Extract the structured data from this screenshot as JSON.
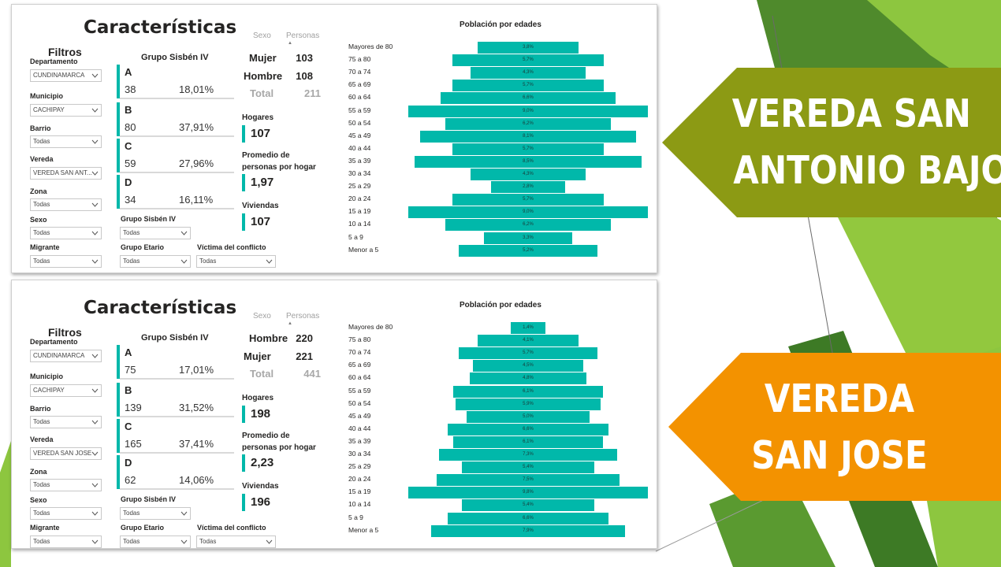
{
  "decor": {
    "arrow1_color": "#8c9a14",
    "arrow2_color": "#f39200",
    "accent": "#01b8aa"
  },
  "callouts": [
    {
      "lines": [
        "VEREDA SAN",
        "ANTONIO BAJO"
      ]
    },
    {
      "lines": [
        "VEREDA",
        "SAN JOSE"
      ]
    }
  ],
  "dashboards": [
    {
      "title": "Características",
      "filters": {
        "heading": "Filtros",
        "departamento": {
          "label": "Departamento",
          "value": "CUNDINAMARCA"
        },
        "municipio": {
          "label": "Municipio",
          "value": "CACHIPAY"
        },
        "barrio": {
          "label": "Barrio",
          "value": "Todas"
        },
        "vereda": {
          "label": "Vereda",
          "value": "VEREDA SAN ANT..."
        },
        "zona": {
          "label": "Zona",
          "value": "Todas"
        },
        "sexo": {
          "label": "Sexo",
          "value": "Todas"
        },
        "migrante": {
          "label": "Migrante",
          "value": "Todas"
        },
        "grupo_sisben": {
          "label": "Grupo Sisbén IV",
          "value": "Todas"
        },
        "grupo_etario": {
          "label": "Grupo Etario",
          "value": "Todas"
        },
        "victima": {
          "label": "Víctima del conflicto",
          "value": "Todas"
        }
      },
      "sisben": {
        "title": "Grupo Sisbén IV",
        "groups": [
          {
            "letter": "A",
            "count": "38",
            "pct": "18,01%"
          },
          {
            "letter": "B",
            "count": "80",
            "pct": "37,91%"
          },
          {
            "letter": "C",
            "count": "59",
            "pct": "27,96%"
          },
          {
            "letter": "D",
            "count": "34",
            "pct": "16,11%"
          }
        ]
      },
      "sex_table": {
        "col_sexo": "Sexo",
        "col_personas": "Personas",
        "rows": [
          {
            "label": "Mujer",
            "value": "103"
          },
          {
            "label": "Hombre",
            "value": "108"
          }
        ],
        "total_label": "Total",
        "total_value": "211"
      },
      "kpis": {
        "hogares": {
          "label": "Hogares",
          "value": "107"
        },
        "promedio": {
          "label": "Promedio de personas por hogar",
          "value": "1,97"
        },
        "viviendas": {
          "label": "Viviendas",
          "value": "107"
        }
      },
      "chart_data": {
        "type": "bar",
        "title": "Población por edades",
        "orientation": "horizontal-centered",
        "categories": [
          "Mayores de 80",
          "75 a 80",
          "70 a 74",
          "65 a 69",
          "60 a 64",
          "55 a 59",
          "50 a 54",
          "45 a 49",
          "40 a 44",
          "35 a 39",
          "30 a 34",
          "25 a 29",
          "20 a 24",
          "15 a 19",
          "10 a 14",
          "5 a 9",
          "Menor a 5"
        ],
        "values": [
          3.8,
          5.7,
          4.3,
          5.7,
          6.6,
          9.0,
          6.2,
          8.1,
          5.7,
          8.5,
          4.3,
          2.8,
          5.7,
          9.0,
          6.2,
          3.3,
          5.2
        ],
        "value_labels": [
          "3,8%",
          "5,7%",
          "4,3%",
          "5,7%",
          "6,6%",
          "9,0%",
          "6,2%",
          "8,1%",
          "5,7%",
          "8,5%",
          "4,3%",
          "2,8%",
          "5,7%",
          "9,0%",
          "6,2%",
          "3,3%",
          "5,2%"
        ],
        "xlabel": "",
        "ylabel": ""
      }
    },
    {
      "title": "Características",
      "filters": {
        "heading": "Filtros",
        "departamento": {
          "label": "Departamento",
          "value": "CUNDINAMARCA"
        },
        "municipio": {
          "label": "Municipio",
          "value": "CACHIPAY"
        },
        "barrio": {
          "label": "Barrio",
          "value": "Todas"
        },
        "vereda": {
          "label": "Vereda",
          "value": "VEREDA SAN JOSE"
        },
        "zona": {
          "label": "Zona",
          "value": "Todas"
        },
        "sexo": {
          "label": "Sexo",
          "value": "Todas"
        },
        "migrante": {
          "label": "Migrante",
          "value": "Todas"
        },
        "grupo_sisben": {
          "label": "Grupo Sisbén IV",
          "value": "Todas"
        },
        "grupo_etario": {
          "label": "Grupo Etario",
          "value": "Todas"
        },
        "victima": {
          "label": "Víctima del conflicto",
          "value": "Todas"
        }
      },
      "sisben": {
        "title": "Grupo Sisbén IV",
        "groups": [
          {
            "letter": "A",
            "count": "75",
            "pct": "17,01%"
          },
          {
            "letter": "B",
            "count": "139",
            "pct": "31,52%"
          },
          {
            "letter": "C",
            "count": "165",
            "pct": "37,41%"
          },
          {
            "letter": "D",
            "count": "62",
            "pct": "14,06%"
          }
        ]
      },
      "sex_table": {
        "col_sexo": "Sexo",
        "col_personas": "Personas",
        "rows": [
          {
            "label": "Hombre",
            "value": "220"
          },
          {
            "label": "Mujer",
            "value": "221"
          }
        ],
        "total_label": "Total",
        "total_value": "441"
      },
      "kpis": {
        "hogares": {
          "label": "Hogares",
          "value": "198"
        },
        "promedio": {
          "label": "Promedio de personas por hogar",
          "value": "2,23"
        },
        "viviendas": {
          "label": "Viviendas",
          "value": "196"
        }
      },
      "chart_data": {
        "type": "bar",
        "title": "Población por edades",
        "orientation": "horizontal-centered",
        "categories": [
          "Mayores de 80",
          "75 a 80",
          "70 a 74",
          "65 a 69",
          "60 a 64",
          "55 a 59",
          "50 a 54",
          "45 a 49",
          "40 a 44",
          "35 a 39",
          "30 a 34",
          "25 a 29",
          "20 a 24",
          "15 a 19",
          "10 a 14",
          "5 a 9",
          "Menor a 5"
        ],
        "values": [
          1.4,
          4.1,
          5.7,
          4.5,
          4.8,
          6.1,
          5.9,
          5.0,
          6.6,
          6.1,
          7.3,
          5.4,
          7.5,
          9.8,
          5.4,
          6.6,
          7.9
        ],
        "value_labels": [
          "1,4%",
          "4,1%",
          "5,7%",
          "4,5%",
          "4,8%",
          "6,1%",
          "5,9%",
          "5,0%",
          "6,6%",
          "6,1%",
          "7,3%",
          "5,4%",
          "7,5%",
          "9,8%",
          "5,4%",
          "6,6%",
          "7,9%"
        ],
        "xlabel": "",
        "ylabel": ""
      }
    }
  ]
}
